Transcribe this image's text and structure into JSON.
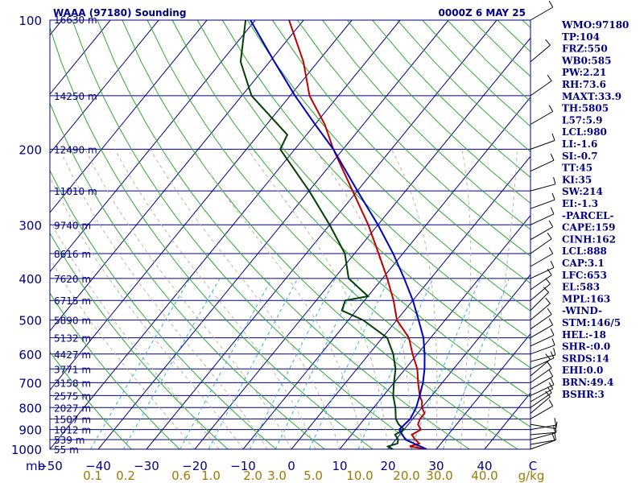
{
  "chart_data": {
    "type": "line",
    "title": "WAAA (97180) Sounding",
    "datetime": "0000Z  6 MAY 25",
    "ylabel": "mb",
    "xlabel": "C",
    "mixing_ratio_unit": "g/kg",
    "ylim": [
      1000,
      100
    ],
    "xlim": [
      -50,
      50
    ],
    "log_y": true,
    "pressure_ticks": [
      {
        "p": 100,
        "label": "100"
      },
      {
        "p": 200,
        "label": "200"
      },
      {
        "p": 300,
        "label": "300"
      },
      {
        "p": 400,
        "label": "400"
      },
      {
        "p": 500,
        "label": "500"
      },
      {
        "p": 600,
        "label": "600"
      },
      {
        "p": 700,
        "label": "700"
      },
      {
        "p": 800,
        "label": "800"
      },
      {
        "p": 900,
        "label": "900"
      },
      {
        "p": 1000,
        "label": "1000"
      }
    ],
    "height_labels": [
      {
        "p": 100,
        "label": "16630 m"
      },
      {
        "p": 150,
        "label": "14250 m"
      },
      {
        "p": 200,
        "label": "12490 m"
      },
      {
        "p": 250,
        "label": "11010 m"
      },
      {
        "p": 300,
        "label": "9740 m"
      },
      {
        "p": 350,
        "label": "8616 m"
      },
      {
        "p": 400,
        "label": "7620 m"
      },
      {
        "p": 450,
        "label": "6715 m"
      },
      {
        "p": 500,
        "label": "5890 m"
      },
      {
        "p": 550,
        "label": "5132 m"
      },
      {
        "p": 600,
        "label": "4427 m"
      },
      {
        "p": 650,
        "label": "3771 m"
      },
      {
        "p": 700,
        "label": "3158 m"
      },
      {
        "p": 750,
        "label": "2575 m"
      },
      {
        "p": 800,
        "label": "2027 m"
      },
      {
        "p": 850,
        "label": "1507 m"
      },
      {
        "p": 900,
        "label": "1012 m"
      },
      {
        "p": 950,
        "label": "539 m"
      },
      {
        "p": 1000,
        "label": "55 m"
      }
    ],
    "x_ticks": [
      "−50",
      "−40",
      "−30",
      "−20",
      "−10",
      "0",
      "10",
      "20",
      "30",
      "40",
      "C"
    ],
    "mixing_ratio_labels": [
      "0.1",
      "0.2",
      "0.6",
      "1.0",
      "2.0",
      "3.0",
      "5.0",
      "10.0",
      "20.0",
      "30.0",
      "40.0",
      "g/kg"
    ],
    "series": [
      {
        "color": "#c00000",
        "points": [
          [
            1000,
            28
          ],
          [
            985,
            24
          ],
          [
            970,
            25.5
          ],
          [
            950,
            24
          ],
          [
            925,
            22.5
          ],
          [
            900,
            23.5
          ],
          [
            875,
            22
          ],
          [
            850,
            21.5
          ],
          [
            825,
            21.5
          ],
          [
            800,
            20
          ],
          [
            775,
            19
          ],
          [
            750,
            17.5
          ],
          [
            700,
            15
          ],
          [
            650,
            12.5
          ],
          [
            600,
            9
          ],
          [
            550,
            5.5
          ],
          [
            500,
            0
          ],
          [
            450,
            -4
          ],
          [
            400,
            -9
          ],
          [
            350,
            -15
          ],
          [
            300,
            -22
          ],
          [
            250,
            -31
          ],
          [
            200,
            -42
          ],
          [
            175,
            -48
          ],
          [
            150,
            -56
          ],
          [
            125,
            -63
          ],
          [
            100,
            -73
          ]
        ]
      },
      {
        "color": "#004000",
        "points": [
          [
            1000,
            21
          ],
          [
            985,
            19.5
          ],
          [
            970,
            21
          ],
          [
            950,
            20.5
          ],
          [
            925,
            19
          ],
          [
            900,
            20
          ],
          [
            875,
            18
          ],
          [
            850,
            16.5
          ],
          [
            800,
            14.5
          ],
          [
            750,
            12
          ],
          [
            700,
            10
          ],
          [
            650,
            8
          ],
          [
            600,
            5
          ],
          [
            550,
            1
          ],
          [
            500,
            -7
          ],
          [
            475,
            -13
          ],
          [
            450,
            -14
          ],
          [
            440,
            -10
          ],
          [
            400,
            -17
          ],
          [
            350,
            -22
          ],
          [
            300,
            -30
          ],
          [
            250,
            -40
          ],
          [
            200,
            -53
          ],
          [
            185,
            -54
          ],
          [
            150,
            -68
          ],
          [
            125,
            -76
          ],
          [
            100,
            -82
          ]
        ]
      },
      {
        "color": "#0000c0",
        "points": [
          [
            1000,
            28
          ],
          [
            950,
            22
          ],
          [
            900,
            19
          ],
          [
            850,
            19.5
          ],
          [
            800,
            18.8
          ],
          [
            750,
            17.5
          ],
          [
            700,
            16
          ],
          [
            650,
            14
          ],
          [
            600,
            11.5
          ],
          [
            550,
            8.5
          ],
          [
            500,
            4.5
          ],
          [
            450,
            0
          ],
          [
            400,
            -5.5
          ],
          [
            350,
            -12
          ],
          [
            300,
            -20
          ],
          [
            250,
            -30
          ],
          [
            200,
            -42
          ],
          [
            175,
            -50
          ],
          [
            150,
            -59
          ],
          [
            125,
            -69
          ],
          [
            100,
            -81
          ],
          [
            93,
            -85
          ]
        ]
      }
    ],
    "wind_barbs_present": true
  },
  "indices": [
    "WMO:97180",
    "TP:104",
    "FRZ:550",
    "WB0:585",
    "PW:2.21",
    "RH:73.6",
    "MAXT:33.9",
    "TH:5805",
    "L57:5.9",
    "LCL:980",
    "LI:-1.6",
    "SI:-0.7",
    "TT:45",
    "KI:35",
    "SW:214",
    "EI:-1.3",
    "-PARCEL-",
    "CAPE:159",
    "CINH:162",
    "LCL:888",
    "CAP:3.1",
    "LFC:653",
    "EL:583",
    "MPL:163",
    "-WIND-",
    "STM:146/5",
    "HEL:-18",
    "SHR-:0.0",
    "SRDS:14",
    "EHI:0.0",
    "BRN:49.4",
    "BSHR:3"
  ]
}
